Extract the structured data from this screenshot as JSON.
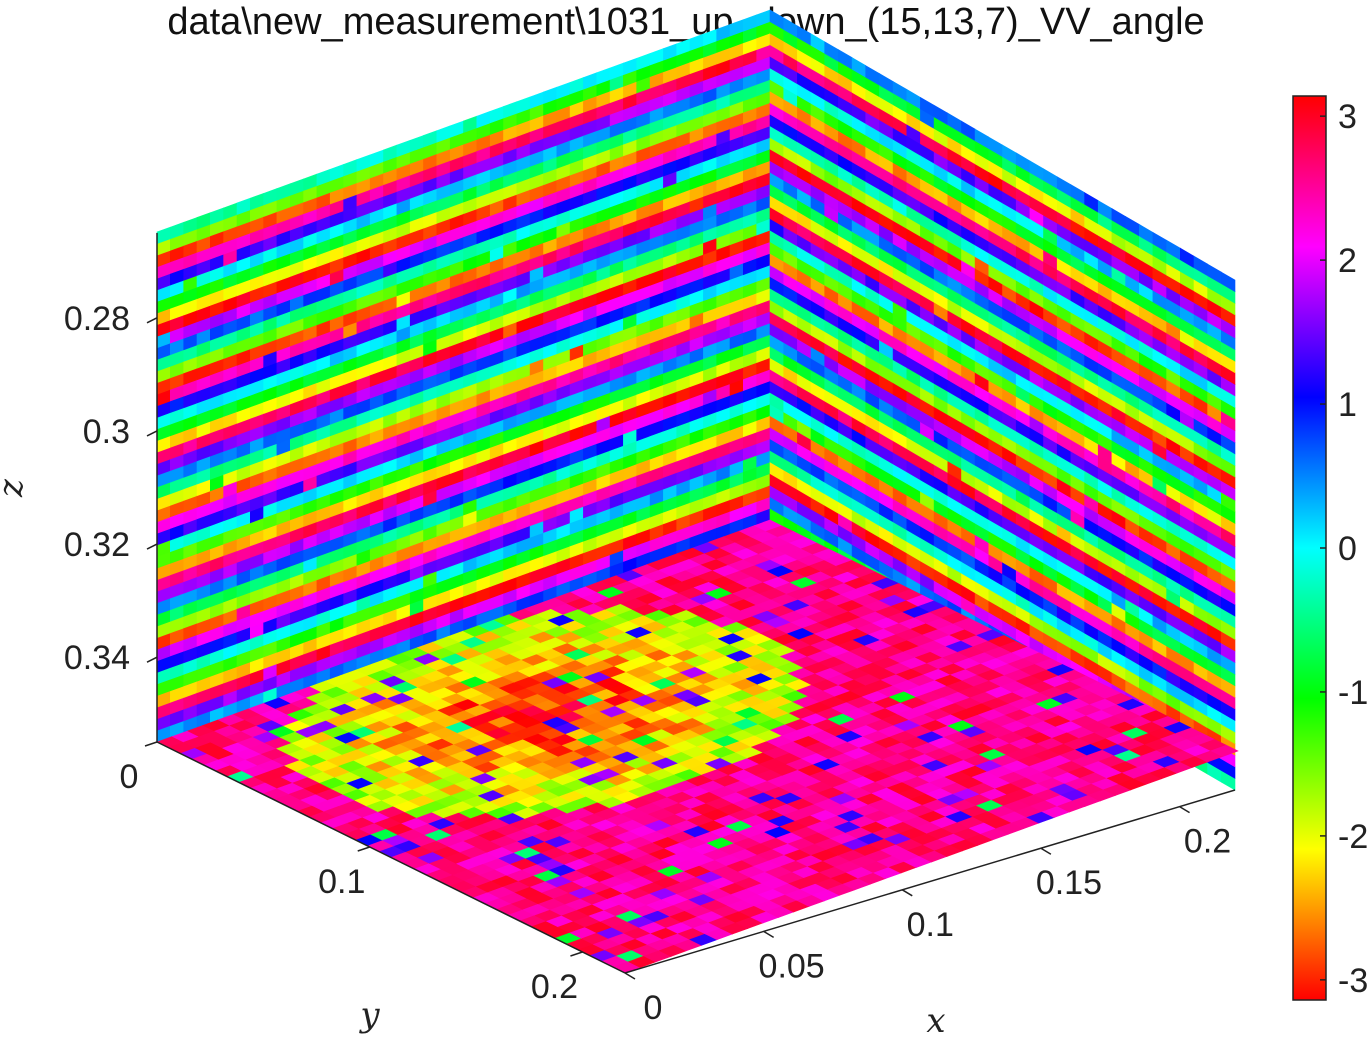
{
  "chart_data": {
    "type": "heatmap",
    "subtype": "3d-slice-volume",
    "title": "data\\new_measurement\\1031_up_down_(15,13,7)_VV_angle",
    "xlabel": "x",
    "ylabel": "y",
    "zlabel": "z",
    "x_ticks": [
      "0",
      "0.05",
      "0.1",
      "0.15",
      "0.2"
    ],
    "y_ticks": [
      "0",
      "0.1",
      "0.2"
    ],
    "z_ticks": [
      "0.28",
      "0.3",
      "0.32",
      "0.34"
    ],
    "xlim": [
      0,
      0.22
    ],
    "ylim": [
      0,
      0.22
    ],
    "zlim": [
      0.265,
      0.355
    ],
    "z_direction": "reversed",
    "grid": false,
    "colormap": "hsv",
    "colorbar": {
      "position": "right",
      "ticks": [
        "3",
        "2",
        "1",
        "0",
        "-1",
        "-2",
        "-3"
      ],
      "range": [
        -3.14,
        3.14
      ]
    },
    "slices": [
      {
        "plane": "back-left (x-z)",
        "pattern": "horizontal bands of phase varying with z, cyan/green/magenta/red stripes"
      },
      {
        "plane": "back-right (y-z)",
        "pattern": "horizontal bands of phase varying with z, green/yellow/blue/red stripes"
      },
      {
        "plane": "floor (x-y)",
        "pattern": "mostly red/magenta with orange-yellow patch near the back, scattered blue and green cells"
      }
    ]
  }
}
